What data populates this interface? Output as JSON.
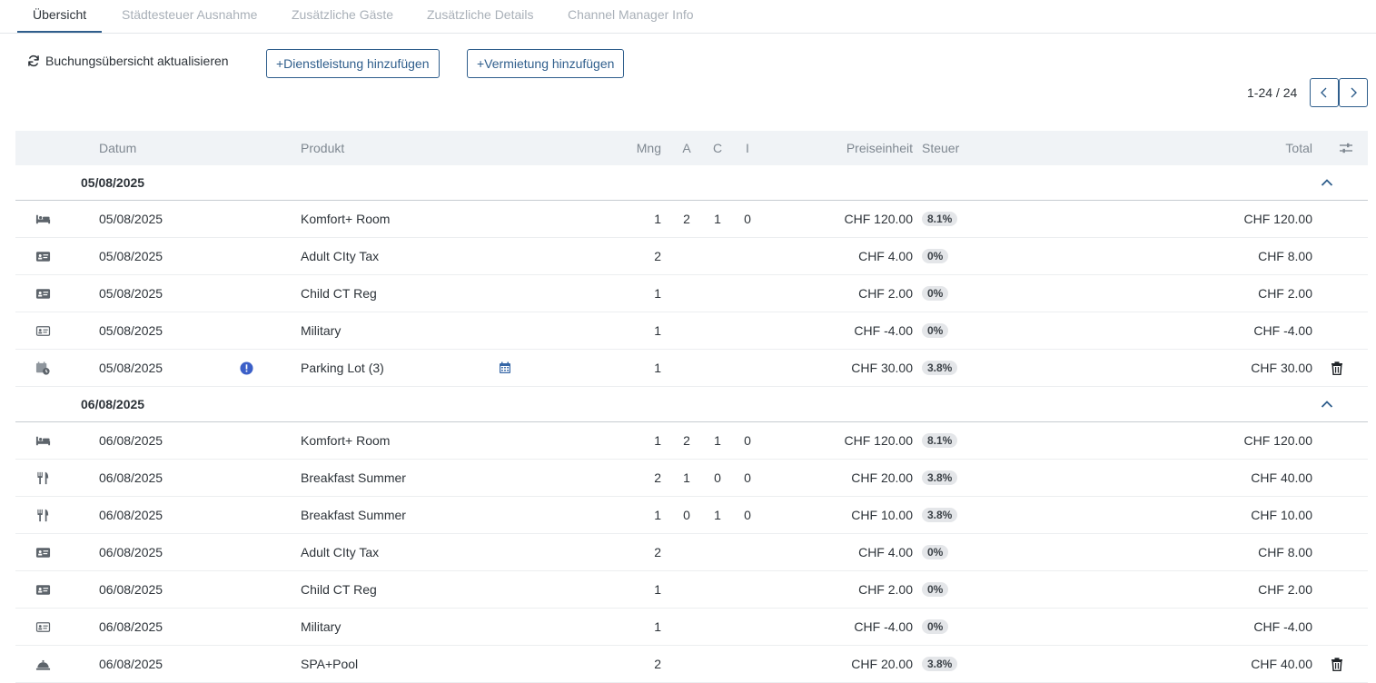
{
  "tabs": [
    "Übersicht",
    "Städtesteuer Ausnahme",
    "Zusätzliche Gäste",
    "Zusätzliche Details",
    "Channel Manager Info"
  ],
  "toolbar": {
    "refresh_label": "Buchungsübersicht aktualisieren",
    "add_service_label": "+Dienstleistung hinzufügen",
    "add_rental_label": "+Vermietung hinzufügen"
  },
  "pager": {
    "text": "1-24 / 24"
  },
  "table": {
    "headers": {
      "datum": "Datum",
      "produkt": "Produkt",
      "mng": "Mng",
      "a": "A",
      "c": "C",
      "i": "I",
      "preiseinheit": "Preiseinheit",
      "steuer": "Steuer",
      "total": "Total"
    },
    "groups": [
      {
        "date": "05/08/2025",
        "rows": [
          {
            "icon": "bed-icon",
            "date": "05/08/2025",
            "product": "Komfort+ Room",
            "mng": "1",
            "a": "2",
            "c": "1",
            "i": "0",
            "price": "CHF 120.00",
            "tax": "8.1%",
            "total": "CHF 120.00"
          },
          {
            "icon": "id-card-icon",
            "date": "05/08/2025",
            "product": "Adult CIty Tax",
            "mng": "2",
            "a": "",
            "c": "",
            "i": "",
            "price": "CHF 4.00",
            "tax": "0%",
            "total": "CHF 8.00"
          },
          {
            "icon": "id-card-icon",
            "date": "05/08/2025",
            "product": "Child CT Reg",
            "mng": "1",
            "a": "",
            "c": "",
            "i": "",
            "price": "CHF 2.00",
            "tax": "0%",
            "total": "CHF 2.00"
          },
          {
            "icon": "id-card-outline-icon",
            "date": "05/08/2025",
            "product": "Military",
            "mng": "1",
            "a": "",
            "c": "",
            "i": "",
            "price": "CHF -4.00",
            "tax": "0%",
            "total": "CHF -4.00"
          },
          {
            "icon": "calendar-clock-icon",
            "date": "05/08/2025",
            "product": "Parking Lot (3)",
            "mng": "1",
            "a": "",
            "c": "",
            "i": "",
            "price": "CHF 30.00",
            "tax": "3.8%",
            "total": "CHF 30.00",
            "info": true,
            "calendar": true,
            "delete": true
          }
        ]
      },
      {
        "date": "06/08/2025",
        "rows": [
          {
            "icon": "bed-icon",
            "date": "06/08/2025",
            "product": "Komfort+ Room",
            "mng": "1",
            "a": "2",
            "c": "1",
            "i": "0",
            "price": "CHF 120.00",
            "tax": "8.1%",
            "total": "CHF 120.00"
          },
          {
            "icon": "utensils-icon",
            "date": "06/08/2025",
            "product": "Breakfast Summer",
            "mng": "2",
            "a": "1",
            "c": "0",
            "i": "0",
            "price": "CHF 20.00",
            "tax": "3.8%",
            "total": "CHF 40.00"
          },
          {
            "icon": "utensils-icon",
            "date": "06/08/2025",
            "product": "Breakfast Summer",
            "mng": "1",
            "a": "0",
            "c": "1",
            "i": "0",
            "price": "CHF 10.00",
            "tax": "3.8%",
            "total": "CHF 10.00"
          },
          {
            "icon": "id-card-icon",
            "date": "06/08/2025",
            "product": "Adult CIty Tax",
            "mng": "2",
            "a": "",
            "c": "",
            "i": "",
            "price": "CHF 4.00",
            "tax": "0%",
            "total": "CHF 8.00"
          },
          {
            "icon": "id-card-icon",
            "date": "06/08/2025",
            "product": "Child CT Reg",
            "mng": "1",
            "a": "",
            "c": "",
            "i": "",
            "price": "CHF 2.00",
            "tax": "0%",
            "total": "CHF 2.00"
          },
          {
            "icon": "id-card-outline-icon",
            "date": "06/08/2025",
            "product": "Military",
            "mng": "1",
            "a": "",
            "c": "",
            "i": "",
            "price": "CHF -4.00",
            "tax": "0%",
            "total": "CHF -4.00"
          },
          {
            "icon": "service-bell-icon",
            "date": "06/08/2025",
            "product": "SPA+Pool",
            "mng": "2",
            "a": "",
            "c": "",
            "i": "",
            "price": "CHF 20.00",
            "tax": "3.8%",
            "total": "CHF 40.00",
            "delete": true
          }
        ]
      }
    ]
  },
  "colors": {
    "accent": "#2f5e8c",
    "info": "#3b5fc8",
    "header_bg": "#f0f3f6",
    "muted": "#a9b0b8"
  }
}
